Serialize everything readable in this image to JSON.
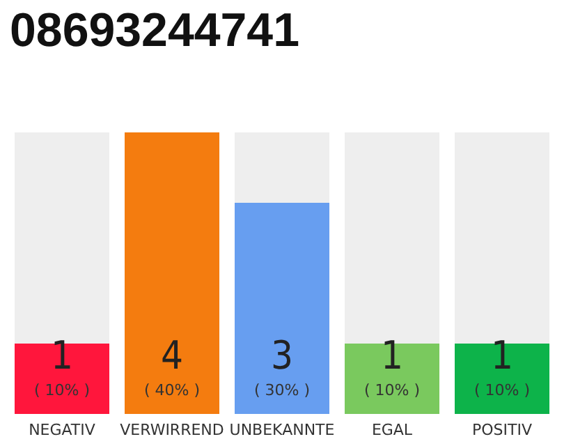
{
  "chart_data": {
    "type": "bar",
    "title": "08693244741",
    "categories": [
      "NEGATIV",
      "VERWIRREND",
      "UNBEKANNTE",
      "EGAL",
      "POSITIV"
    ],
    "values": [
      1,
      4,
      3,
      1,
      1
    ],
    "colors": [
      "#ff163c",
      "#f47c0f",
      "#679ef0",
      "#7ac95e",
      "#0db34a"
    ],
    "value_labels": [
      "1\n( 10% )",
      "4\n( 40% )",
      "3\n( 30% )",
      "1\n( 10% )",
      "1\n( 10% )"
    ]
  }
}
